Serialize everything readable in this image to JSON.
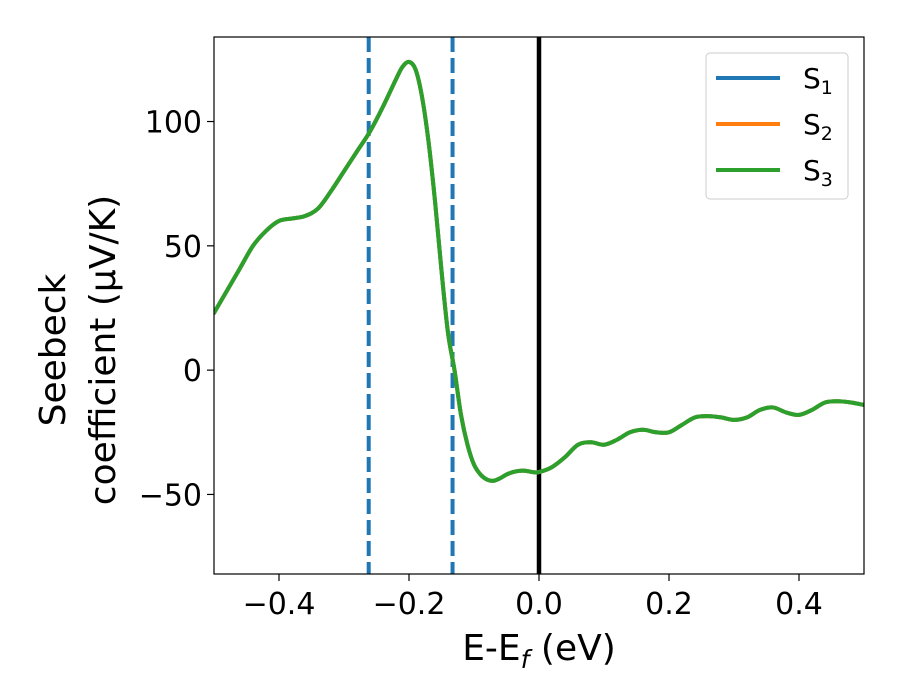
{
  "chart_data": {
    "type": "line",
    "xlabel": {
      "main": "E-E",
      "sub": "f",
      "unit": " (eV)"
    },
    "ylabel": {
      "line1": "Seebeck",
      "line2": "coefficient  (μV/K)"
    },
    "xlim": [
      -0.5,
      0.5
    ],
    "ylim": [
      -82,
      134
    ],
    "xticks": [
      -0.4,
      -0.2,
      0.0,
      0.2,
      0.4
    ],
    "xtick_labels": [
      "−0.4",
      "−0.2",
      "0.0",
      "0.2",
      "0.4"
    ],
    "yticks": [
      -50,
      0,
      50,
      100
    ],
    "ytick_labels": [
      "−50",
      "0",
      "50",
      "100"
    ],
    "grid": false,
    "legend_position": "top-right",
    "vlines": [
      {
        "x": -0.262,
        "style": "dashed",
        "color": "#1f77b4"
      },
      {
        "x": -0.133,
        "style": "dashed",
        "color": "#1f77b4"
      },
      {
        "x": 0.0,
        "style": "solid",
        "color": "#000000"
      }
    ],
    "x": [
      -0.5,
      -0.48,
      -0.46,
      -0.44,
      -0.42,
      -0.4,
      -0.38,
      -0.36,
      -0.34,
      -0.32,
      -0.3,
      -0.28,
      -0.26,
      -0.24,
      -0.22,
      -0.21,
      -0.2,
      -0.19,
      -0.18,
      -0.17,
      -0.16,
      -0.15,
      -0.14,
      -0.13,
      -0.12,
      -0.11,
      -0.1,
      -0.09,
      -0.08,
      -0.07,
      -0.06,
      -0.05,
      -0.04,
      -0.03,
      -0.02,
      -0.01,
      0.0,
      0.02,
      0.04,
      0.06,
      0.08,
      0.1,
      0.12,
      0.14,
      0.16,
      0.18,
      0.2,
      0.22,
      0.24,
      0.26,
      0.28,
      0.3,
      0.32,
      0.34,
      0.36,
      0.38,
      0.4,
      0.42,
      0.44,
      0.46,
      0.48,
      0.5
    ],
    "series": [
      {
        "name": "S",
        "sub": "1",
        "color": "#1f77b4",
        "values": [
          23,
          32,
          41,
          50,
          56,
          60,
          61,
          62,
          65,
          72,
          80,
          88,
          96,
          106,
          117,
          122,
          124,
          121,
          110,
          92,
          68,
          40,
          15,
          0,
          -18,
          -30,
          -38,
          -42,
          -44,
          -44.5,
          -43.5,
          -42,
          -41,
          -40.5,
          -40.5,
          -41,
          -41,
          -39,
          -35,
          -30,
          -29,
          -30,
          -28,
          -25,
          -24,
          -25,
          -25,
          -22,
          -19,
          -18.5,
          -19,
          -20,
          -19,
          -16,
          -15,
          -17,
          -18,
          -16,
          -13,
          -12.5,
          -13,
          -14
        ]
      },
      {
        "name": "S",
        "sub": "2",
        "color": "#ff7f0e",
        "values": [
          23,
          32,
          41,
          50,
          56,
          60,
          61,
          62,
          65,
          72,
          80,
          88,
          96,
          106,
          117,
          122,
          124,
          121,
          110,
          92,
          68,
          40,
          15,
          0,
          -18,
          -30,
          -38,
          -42,
          -44,
          -44.5,
          -43.5,
          -42,
          -41,
          -40.5,
          -40.5,
          -41,
          -41,
          -39,
          -35,
          -30,
          -29,
          -30,
          -28,
          -25,
          -24,
          -25,
          -25,
          -22,
          -19,
          -18.5,
          -19,
          -20,
          -19,
          -16,
          -15,
          -17,
          -18,
          -16,
          -13,
          -12.5,
          -13,
          -14
        ]
      },
      {
        "name": "S",
        "sub": "3",
        "color": "#2ca02c",
        "values": [
          23,
          32,
          41,
          50,
          56,
          60,
          61,
          62,
          65,
          72,
          80,
          88,
          96,
          106,
          117,
          122,
          124,
          121,
          110,
          92,
          68,
          40,
          15,
          0,
          -18,
          -30,
          -38,
          -42,
          -44,
          -44.5,
          -43.5,
          -42,
          -41,
          -40.5,
          -40.5,
          -41,
          -41,
          -39,
          -35,
          -30,
          -29,
          -30,
          -28,
          -25,
          -24,
          -25,
          -25,
          -22,
          -19,
          -18.5,
          -19,
          -20,
          -19,
          -16,
          -15,
          -17,
          -18,
          -16,
          -13,
          -12.5,
          -13,
          -14
        ]
      }
    ]
  }
}
